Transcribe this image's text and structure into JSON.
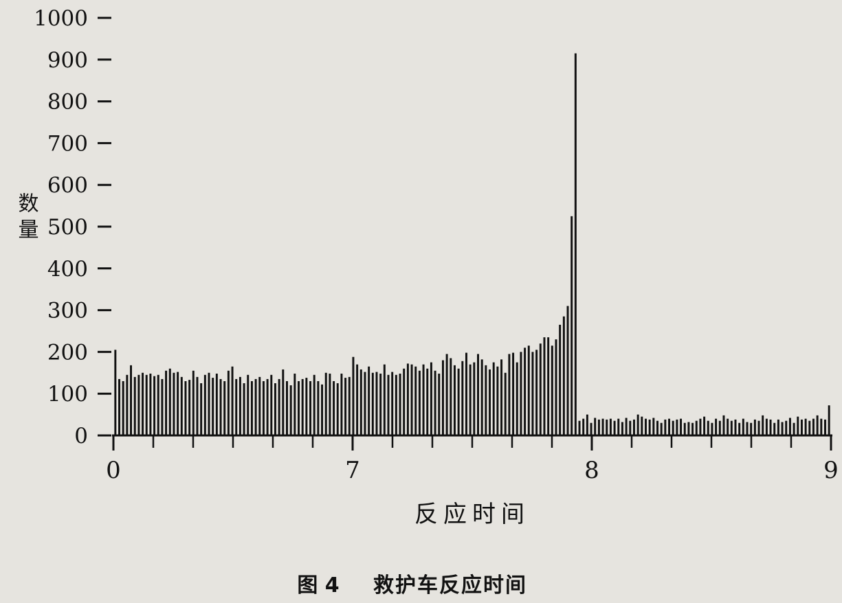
{
  "chart_data": {
    "type": "bar",
    "title": "",
    "caption_fig": "图 4",
    "caption_text": "救护车反应时间",
    "xlabel": "反应时间",
    "ylabel": "数量",
    "ylim": [
      0,
      1000
    ],
    "yticks": [
      0,
      100,
      200,
      300,
      400,
      500,
      600,
      700,
      800,
      900,
      1000
    ],
    "xticks": [
      {
        "pos": 0,
        "label": "0"
      },
      {
        "pos": 60,
        "label": "7"
      },
      {
        "pos": 120,
        "label": "8"
      },
      {
        "pos": 180,
        "label": "9"
      }
    ],
    "minor_tick_step": 10,
    "xlim": [
      0,
      180
    ],
    "values": [
      205,
      135,
      130,
      145,
      168,
      140,
      145,
      150,
      145,
      148,
      142,
      145,
      135,
      155,
      160,
      150,
      152,
      140,
      130,
      133,
      155,
      140,
      125,
      145,
      150,
      138,
      148,
      135,
      130,
      155,
      165,
      135,
      140,
      125,
      145,
      130,
      135,
      140,
      130,
      135,
      145,
      125,
      135,
      158,
      130,
      120,
      148,
      130,
      135,
      138,
      130,
      145,
      130,
      122,
      150,
      148,
      130,
      125,
      148,
      138,
      140,
      188,
      170,
      158,
      152,
      165,
      150,
      152,
      148,
      170,
      145,
      152,
      145,
      148,
      160,
      172,
      170,
      165,
      155,
      170,
      160,
      175,
      155,
      148,
      180,
      195,
      185,
      168,
      160,
      178,
      198,
      170,
      175,
      195,
      182,
      168,
      158,
      175,
      165,
      182,
      150,
      195,
      198,
      175,
      200,
      210,
      215,
      200,
      205,
      220,
      235,
      235,
      215,
      230,
      265,
      285,
      310,
      525,
      915,
      35,
      40,
      50,
      30,
      42,
      38,
      40,
      38,
      40,
      35,
      40,
      32,
      42,
      35,
      38,
      50,
      45,
      40,
      38,
      42,
      35,
      30,
      38,
      40,
      35,
      38,
      40,
      30,
      32,
      30,
      35,
      40,
      45,
      35,
      30,
      40,
      35,
      48,
      40,
      35,
      38,
      30,
      40,
      32,
      30,
      38,
      35,
      48,
      40,
      38,
      30,
      38,
      32,
      35,
      42,
      30,
      45,
      38,
      40,
      35,
      40,
      48,
      40,
      38,
      72
    ]
  }
}
